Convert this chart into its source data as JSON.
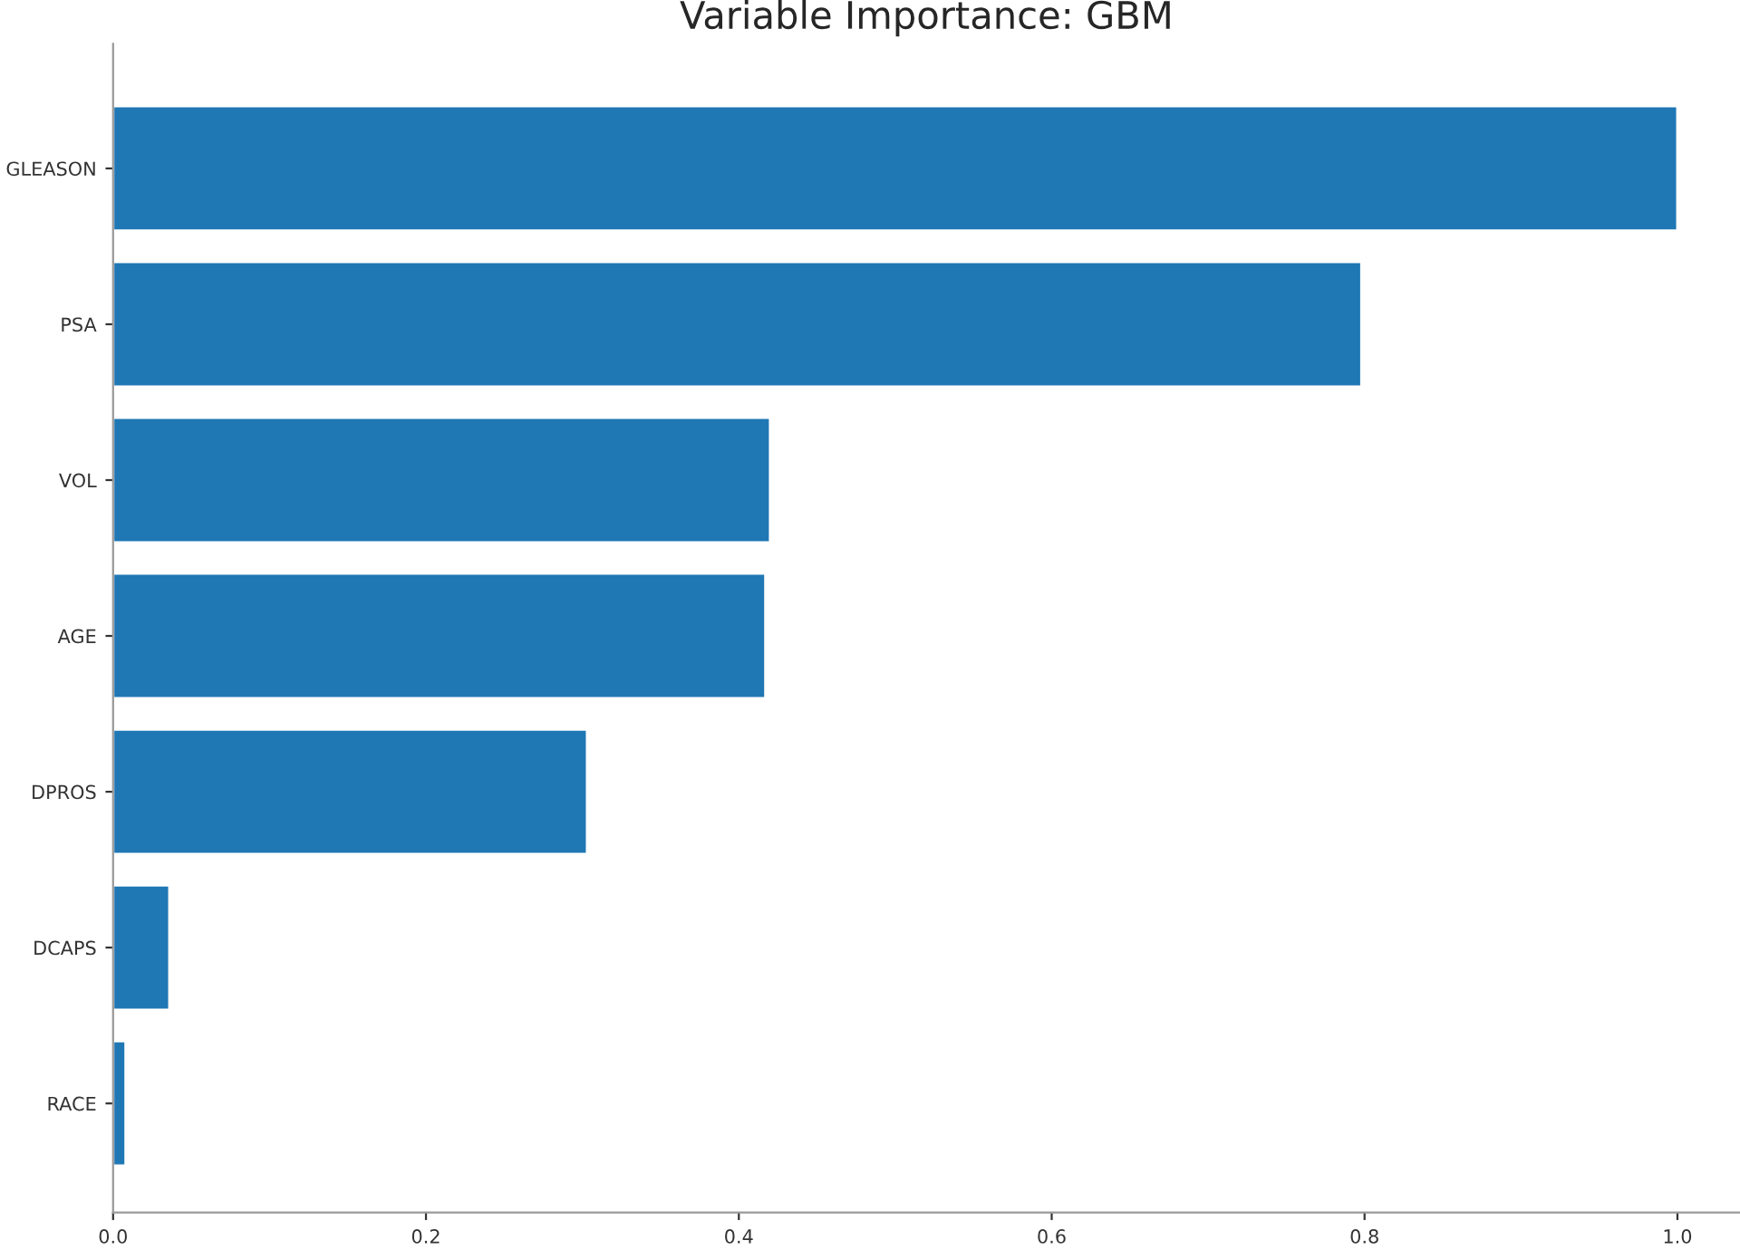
{
  "chart_data": {
    "type": "bar",
    "orientation": "horizontal",
    "title": "Variable Importance: GBM",
    "categories": [
      "GLEASON",
      "PSA",
      "VOL",
      "AGE",
      "DPROS",
      "DCAPS",
      "RACE"
    ],
    "values": [
      1.0,
      0.798,
      0.42,
      0.417,
      0.303,
      0.036,
      0.008
    ],
    "color": "#1f77b4",
    "xlim": [
      0,
      1.04
    ],
    "xticks": [
      {
        "value": 0,
        "label": "0.0"
      },
      0.2,
      0.4,
      0.6,
      0.8,
      {
        "value": 1,
        "label": "1.0"
      }
    ],
    "grid": false,
    "legend": false
  }
}
